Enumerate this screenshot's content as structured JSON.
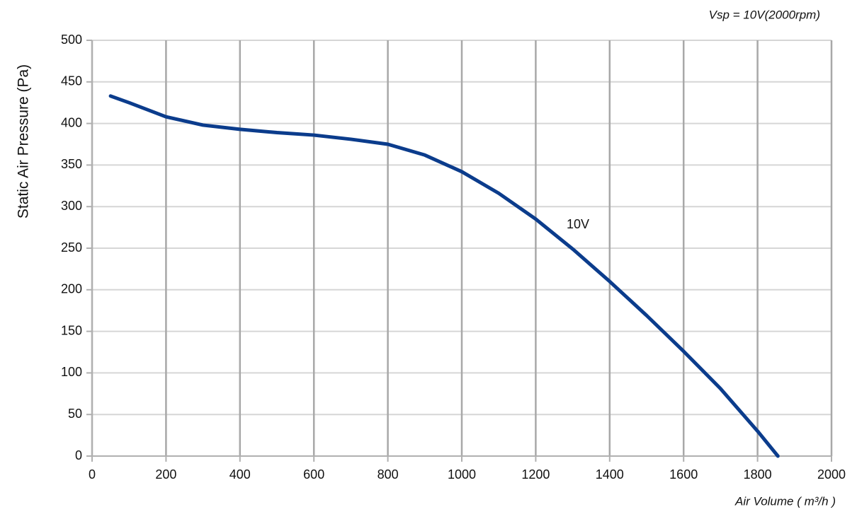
{
  "chart_data": {
    "type": "line",
    "title": "Vsp = 10V(2000rpm)",
    "x_label": "Air Volume ( m³/h )",
    "y_label": "Static Air Pressure  (Pa)",
    "x": [
      50,
      100,
      200,
      300,
      400,
      500,
      600,
      700,
      800,
      900,
      1000,
      1100,
      1200,
      1300,
      1400,
      1500,
      1600,
      1700,
      1800,
      1855
    ],
    "series": [
      {
        "name": "10V",
        "color": "#0b3c8c",
        "values": [
          433,
          425,
          408,
          398,
          393,
          389,
          386,
          381,
          375,
          362,
          342,
          316,
          285,
          249,
          210,
          169,
          126,
          81,
          30,
          0
        ]
      }
    ],
    "xlim": [
      0,
      2000
    ],
    "xticks": [
      0,
      200,
      400,
      600,
      800,
      1000,
      1200,
      1400,
      1600,
      1800,
      2000
    ],
    "ylim": [
      0,
      500
    ],
    "yticks": [
      0,
      50,
      100,
      150,
      200,
      250,
      300,
      350,
      400,
      450,
      500
    ],
    "grid": true
  }
}
